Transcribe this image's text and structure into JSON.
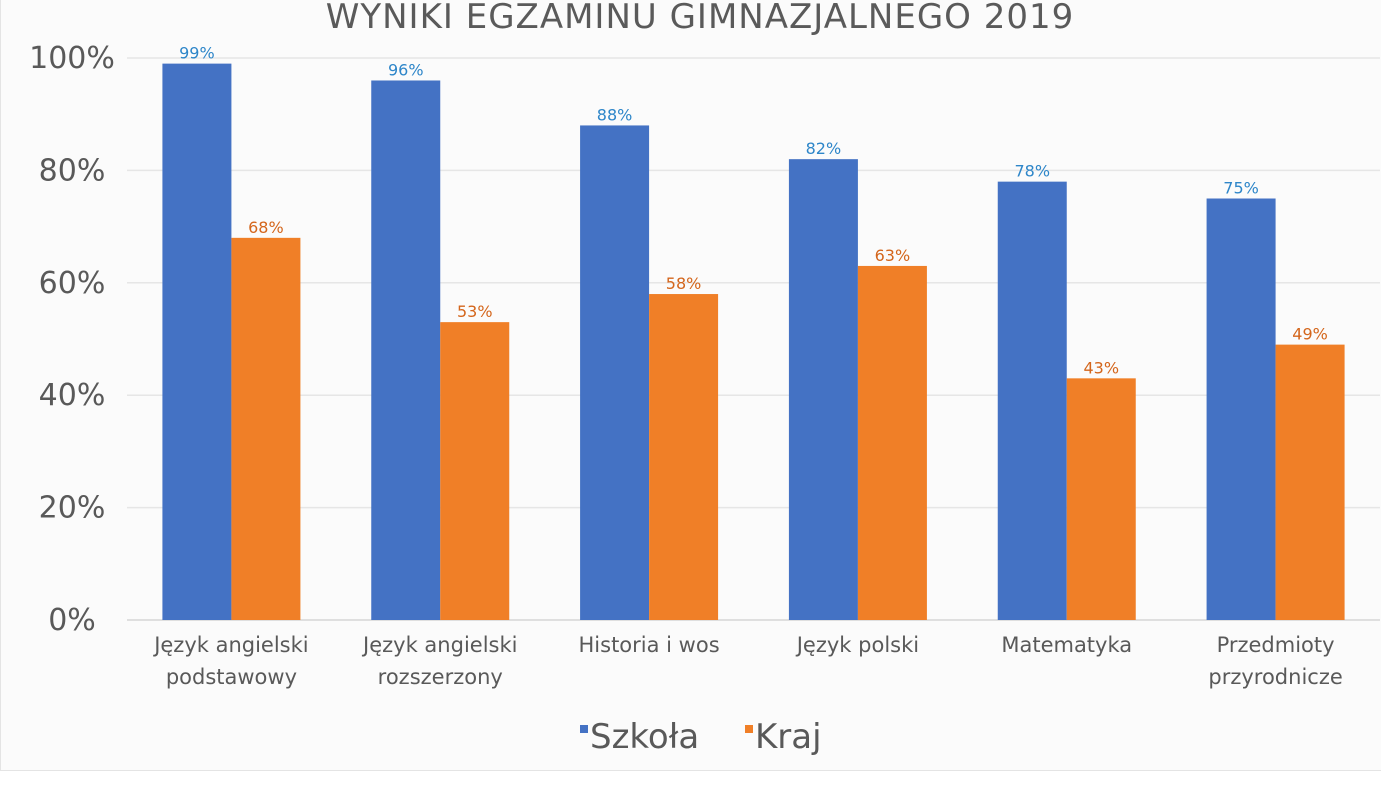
{
  "chart_data": {
    "type": "bar",
    "title": "WYNIKI EGZAMINU GIMNAZJALNEGO  2019",
    "xlabel": "",
    "ylabel": "",
    "ylim": [
      0,
      100
    ],
    "y_ticks": [
      "0%",
      "20%",
      "40%",
      "60%",
      "80%",
      "100%"
    ],
    "y_tick_values": [
      0,
      20,
      40,
      60,
      80,
      100
    ],
    "value_suffix": "%",
    "categories": [
      [
        "Język angielski",
        "podstawowy"
      ],
      [
        "Język angielski",
        "rozszerzony"
      ],
      [
        "Historia i wos"
      ],
      [
        "Język polski"
      ],
      [
        "Matematyka"
      ],
      [
        "Przedmioty",
        "przyrodnicze"
      ]
    ],
    "series": [
      {
        "name": "Szkoła",
        "color": "#4472c4",
        "label_color": "#2e86c9",
        "values": [
          99,
          96,
          88,
          82,
          78,
          75
        ]
      },
      {
        "name": "Kraj",
        "color": "#f07f27",
        "label_color": "#d4661c",
        "values": [
          68,
          53,
          58,
          63,
          43,
          49
        ]
      }
    ],
    "grid": true,
    "legend": "bottom"
  }
}
